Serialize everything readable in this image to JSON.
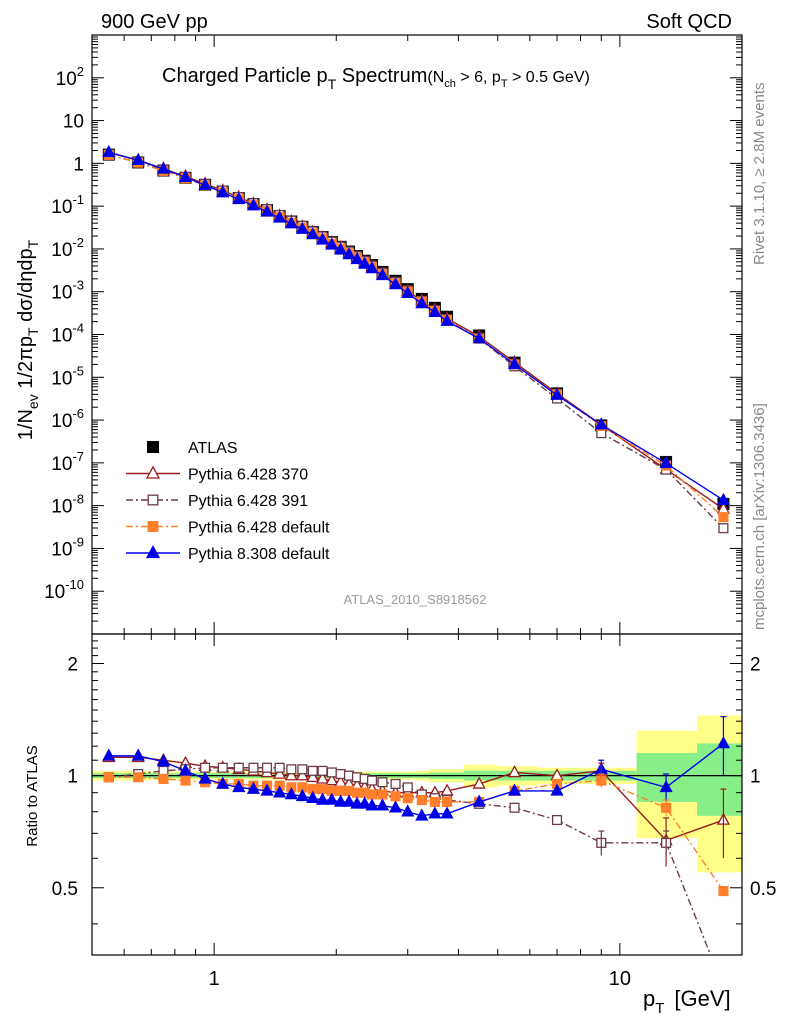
{
  "header": {
    "left": "900 GeV pp",
    "right": "Soft QCD"
  },
  "side_labels": {
    "upper": "Rivet 3.1.10, ≥ 2.8M events",
    "lower": "mcplots.cern.ch [arXiv:1306.3436]"
  },
  "chart_data": {
    "type": "scatter",
    "title_main": "Charged Particle p",
    "title_main_sub": "T",
    "title_main_tail": " Spectrum",
    "title_cond": "(N",
    "title_cond_sub1": "ch",
    "title_cond_mid": " > 6, p",
    "title_cond_sub2": "T",
    "title_cond_tail": " > 0.5 GeV)",
    "analysis_tag": "ATLAS_2010_S8918562",
    "ylabel_main": "1/N",
    "ylabel_sub1": "ev",
    "ylabel_mid": " 1/2πp",
    "ylabel_sub2": "T",
    "ylabel_tail": " dσ/dηdp",
    "ylabel_sub3": "T",
    "ylabel_ratio": "Ratio to ATLAS",
    "xlabel": "p",
    "xlabel_sub": "T",
    "xlabel_unit": "[GeV]",
    "x_scale": "log",
    "xlim": [
      0.5,
      20
    ],
    "x_tick_labels": [
      "1",
      "10"
    ],
    "y_scale": "log",
    "ylim": [
      1e-11,
      1000
    ],
    "y_tick_labels": [
      {
        "m": "10",
        "e": "2"
      },
      {
        "m": "10",
        "e": ""
      },
      {
        "m": "1",
        "e": ""
      },
      {
        "m": "10",
        "e": "-1"
      },
      {
        "m": "10",
        "e": "-2"
      },
      {
        "m": "10",
        "e": "-3"
      },
      {
        "m": "10",
        "e": "-4"
      },
      {
        "m": "10",
        "e": "-5"
      },
      {
        "m": "10",
        "e": "-6"
      },
      {
        "m": "10",
        "e": "-7"
      },
      {
        "m": "10",
        "e": "-8"
      },
      {
        "m": "10",
        "e": "-9"
      },
      {
        "m": "10",
        "e": "-10"
      }
    ],
    "ratio_ylim": [
      0.33,
      2.4
    ],
    "ratio_tick_labels": [
      "2",
      "1",
      "0.5"
    ],
    "legend_position": "lower-left",
    "x": [
      0.55,
      0.65,
      0.75,
      0.85,
      0.95,
      1.05,
      1.15,
      1.25,
      1.35,
      1.45,
      1.55,
      1.65,
      1.75,
      1.85,
      1.95,
      2.05,
      2.15,
      2.25,
      2.35,
      2.45,
      2.6,
      2.8,
      3.0,
      3.25,
      3.5,
      3.75,
      4.5,
      5.5,
      7.0,
      9.0,
      13.0,
      18.0
    ],
    "reference": {
      "name": "ATLAS",
      "values": [
        1.6,
        1.05,
        0.68,
        0.46,
        0.315,
        0.22,
        0.155,
        0.112,
        0.081,
        0.059,
        0.044,
        0.033,
        0.025,
        0.019,
        0.0145,
        0.0112,
        0.0087,
        0.0068,
        0.0053,
        0.0042,
        0.0029,
        0.0018,
        0.00115,
        0.00068,
        0.00042,
        0.00026,
        9.5e-05,
        2.2e-05,
        4.2e-06,
        7.5e-07,
        1.05e-07,
        1.1e-08
      ],
      "band_inner": [
        0.015,
        0.015,
        0.015,
        0.015,
        0.015,
        0.015,
        0.015,
        0.015,
        0.015,
        0.015,
        0.015,
        0.015,
        0.015,
        0.015,
        0.015,
        0.015,
        0.015,
        0.015,
        0.015,
        0.015,
        0.015,
        0.015,
        0.015,
        0.015,
        0.02,
        0.02,
        0.03,
        0.03,
        0.03,
        0.03,
        0.15,
        0.22
      ],
      "band_outer": [
        0.03,
        0.03,
        0.025,
        0.025,
        0.025,
        0.025,
        0.025,
        0.025,
        0.025,
        0.025,
        0.025,
        0.025,
        0.025,
        0.025,
        0.025,
        0.025,
        0.025,
        0.025,
        0.025,
        0.025,
        0.025,
        0.025,
        0.025,
        0.03,
        0.04,
        0.04,
        0.07,
        0.06,
        0.05,
        0.05,
        0.32,
        0.45
      ]
    },
    "series": [
      {
        "name": "Pythia 6.428 370",
        "color": "#9a1b1b",
        "marker": "open-triangle",
        "dash": "",
        "ratio": [
          1.12,
          1.12,
          1.1,
          1.08,
          1.06,
          1.05,
          1.04,
          1.03,
          1.02,
          1.01,
          1.0,
          1.0,
          0.99,
          0.98,
          0.97,
          0.96,
          0.95,
          0.94,
          0.93,
          0.92,
          0.91,
          0.9,
          0.9,
          0.9,
          0.9,
          0.91,
          0.95,
          1.02,
          1.0,
          1.03,
          0.67,
          0.76
        ]
      },
      {
        "name": "Pythia 6.428 391",
        "color": "#6b3a4a",
        "marker": "open-square",
        "dash": "7,3,2,3",
        "ratio": [
          0.99,
          1.01,
          1.03,
          1.04,
          1.05,
          1.05,
          1.05,
          1.05,
          1.05,
          1.05,
          1.04,
          1.04,
          1.03,
          1.03,
          1.02,
          1.01,
          1.0,
          0.99,
          0.98,
          0.97,
          0.96,
          0.95,
          0.93,
          0.89,
          0.87,
          0.86,
          0.84,
          0.82,
          0.76,
          0.66,
          0.66,
          0.27
        ]
      },
      {
        "name": "Pythia 6.428 default",
        "color": "#ff7f2a",
        "marker": "filled-square",
        "dash": "7,3,2,3",
        "ratio": [
          0.99,
          0.99,
          0.98,
          0.97,
          0.96,
          0.95,
          0.95,
          0.94,
          0.94,
          0.94,
          0.93,
          0.93,
          0.92,
          0.92,
          0.91,
          0.91,
          0.91,
          0.9,
          0.9,
          0.89,
          0.89,
          0.88,
          0.87,
          0.86,
          0.85,
          0.85,
          0.85,
          0.91,
          0.95,
          0.97,
          0.82,
          0.49
        ]
      },
      {
        "name": "Pythia 8.308 default",
        "color": "#0000e6",
        "marker": "filled-triangle",
        "dash": "",
        "ratio": [
          1.13,
          1.13,
          1.09,
          1.03,
          0.98,
          0.95,
          0.93,
          0.92,
          0.91,
          0.9,
          0.89,
          0.88,
          0.87,
          0.86,
          0.86,
          0.85,
          0.85,
          0.84,
          0.84,
          0.83,
          0.83,
          0.82,
          0.8,
          0.78,
          0.79,
          0.79,
          0.85,
          0.91,
          0.91,
          1.04,
          0.93,
          1.22
        ]
      }
    ]
  }
}
